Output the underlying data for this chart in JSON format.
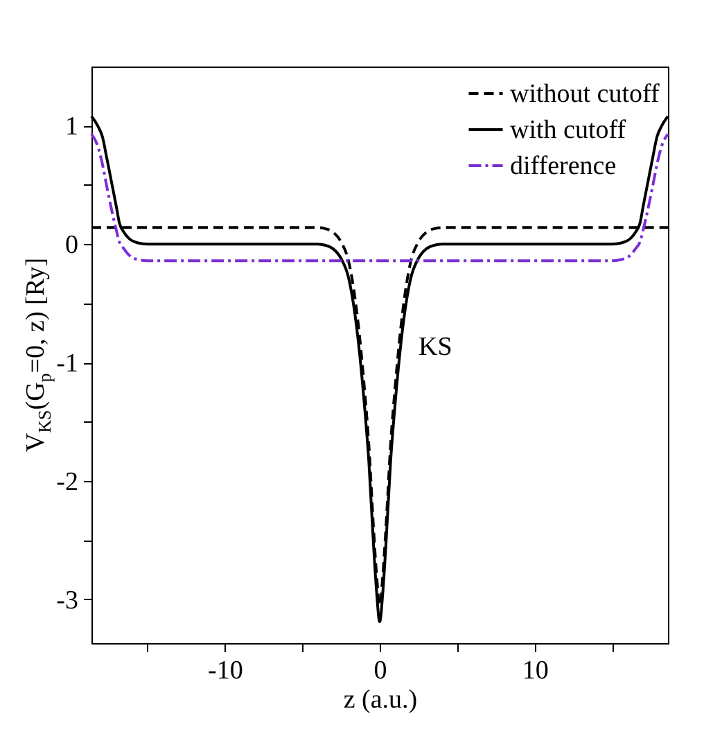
{
  "chart_data": {
    "type": "line",
    "xlabel": "z (a.u.)",
    "ylabel": "V$_{KS}$(G$_{p}$=0, z) [Ry]",
    "xlim": [
      -18.6,
      18.6
    ],
    "xticks": [
      {
        "value": -15,
        "label": null
      },
      -10,
      {
        "value": -5,
        "label": null
      },
      0,
      {
        "value": 5,
        "label": null
      },
      10,
      {
        "value": 15,
        "label": null
      }
    ],
    "ylim": [
      -3.37,
      1.5
    ],
    "yticks": [
      -3,
      {
        "value": -2.5,
        "label": null
      },
      -2,
      {
        "value": -1.5,
        "label": null
      },
      -1,
      {
        "value": -0.5,
        "label": null
      },
      0,
      {
        "value": 0.5,
        "label": null
      },
      1
    ],
    "grid": false,
    "legend": "top right",
    "annotations": [
      "KS"
    ],
    "series": [
      {
        "name": "without cutoff",
        "color": "#000000",
        "line_style": "dashed",
        "x": [
          -18.6,
          -4,
          -3.5,
          -3,
          -2.5,
          -2,
          -1.5,
          -1,
          -0.7,
          -0.4,
          -0.2,
          0,
          0.2,
          0.4,
          0.7,
          1,
          1.5,
          2,
          2.5,
          3,
          3.5,
          4,
          18.6
        ],
        "values": [
          0.14,
          0.14,
          0.13,
          0.1,
          0.02,
          -0.15,
          -0.55,
          -1.2,
          -1.7,
          -2.4,
          -2.8,
          -3.05,
          -2.8,
          -2.4,
          -1.7,
          -1.2,
          -0.55,
          -0.15,
          0.02,
          0.1,
          0.13,
          0.14,
          0.14
        ]
      },
      {
        "name": "with cutoff",
        "color": "#000000",
        "line_style": "solid",
        "x": [
          -18.6,
          -18.2,
          -17.9,
          -17.6,
          -17.3,
          -17.0,
          -16.8,
          -16.5,
          -16.2,
          -15.6,
          -15,
          -4,
          -3.5,
          -3,
          -2.5,
          -2,
          -1.5,
          -1,
          -0.7,
          -0.4,
          -0.2,
          0,
          0.2,
          0.4,
          0.7,
          1,
          1.5,
          2,
          2.5,
          3,
          3.5,
          4,
          15,
          15.6,
          16.2,
          16.5,
          16.8,
          17.0,
          17.3,
          17.6,
          17.9,
          18.2,
          18.6
        ],
        "values": [
          1.08,
          1.0,
          0.91,
          0.72,
          0.52,
          0.32,
          0.18,
          0.1,
          0.05,
          0.01,
          0,
          0,
          -0.01,
          -0.04,
          -0.12,
          -0.29,
          -0.69,
          -1.34,
          -1.84,
          -2.54,
          -2.94,
          -3.19,
          -2.94,
          -2.54,
          -1.84,
          -1.34,
          -0.69,
          -0.29,
          -0.12,
          -0.04,
          -0.01,
          0,
          0,
          0.01,
          0.05,
          0.1,
          0.18,
          0.32,
          0.52,
          0.72,
          0.91,
          1.0,
          1.08
        ]
      },
      {
        "name": "difference",
        "color": "#7b2fd6",
        "line_style": "dashdot",
        "x": [
          -18.6,
          -18.2,
          -17.9,
          -17.6,
          -17.3,
          -17.0,
          -16.8,
          -16.5,
          -16.2,
          -15.6,
          -15,
          15,
          15.6,
          16.2,
          16.5,
          16.8,
          17.0,
          17.3,
          17.6,
          17.9,
          18.2,
          18.6
        ],
        "values": [
          0.93,
          0.83,
          0.68,
          0.48,
          0.29,
          0.12,
          0.02,
          -0.04,
          -0.09,
          -0.13,
          -0.14,
          -0.14,
          -0.13,
          -0.09,
          -0.04,
          0.02,
          0.12,
          0.29,
          0.48,
          0.68,
          0.83,
          0.93
        ]
      }
    ]
  }
}
